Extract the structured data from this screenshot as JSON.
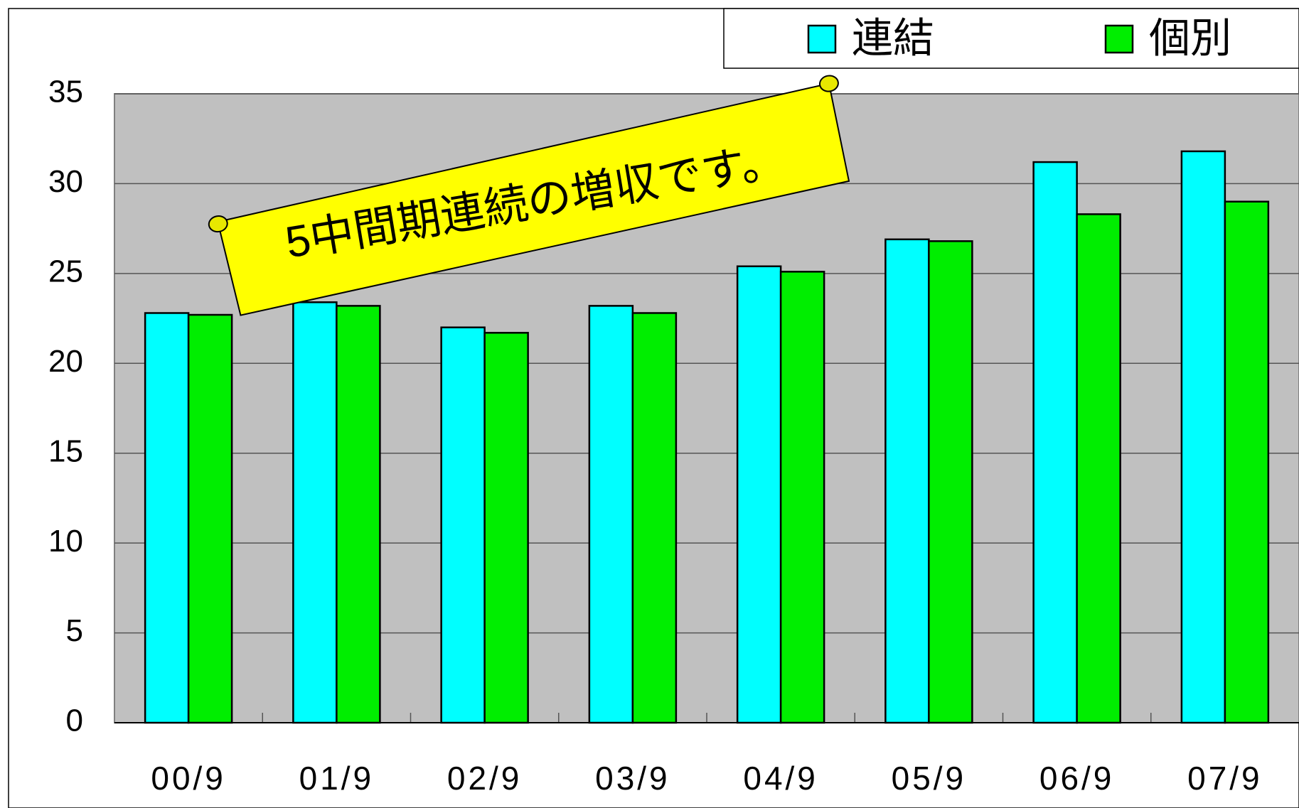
{
  "chart_data": {
    "type": "bar",
    "annotation": "5中間期連続の増収です。",
    "categories": [
      "00/9",
      "01/9",
      "02/9",
      "03/9",
      "04/9",
      "05/9",
      "06/9",
      "07/9"
    ],
    "series": [
      {
        "name": "連結",
        "color": "#00ffff",
        "values": [
          22.8,
          23.4,
          22.0,
          23.2,
          25.4,
          26.9,
          31.2,
          31.8
        ]
      },
      {
        "name": "個別",
        "color": "#00ee00",
        "values": [
          22.7,
          23.2,
          21.7,
          22.8,
          25.1,
          26.8,
          28.3,
          29.0
        ]
      }
    ],
    "ylim": [
      0,
      35
    ],
    "yticks": [
      0,
      5,
      10,
      15,
      20,
      25,
      30,
      35
    ],
    "grid": true,
    "legend": "top-right"
  }
}
